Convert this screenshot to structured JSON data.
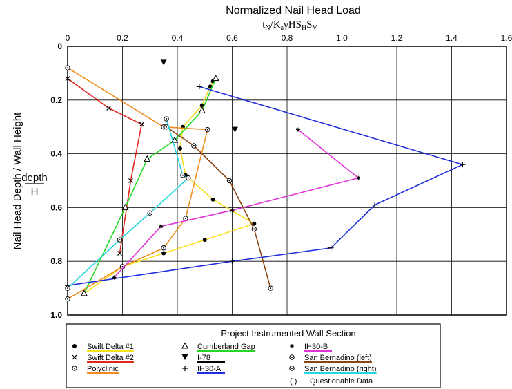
{
  "chart_data": {
    "type": "line",
    "title": "Normalized Nail Head Load",
    "formula_parts": {
      "t": "t",
      "t_sub": "N",
      "slash": "/",
      "K": "K",
      "K_sub": "a",
      "gamma": "γHS",
      "SH_sub": "H",
      "S": "S",
      "SV_sub": "V"
    },
    "ylabel": "Nail Head Depth / Wall Height",
    "y_fraction_num": "depth",
    "y_fraction_den": "H",
    "xlim": [
      0,
      1.6
    ],
    "ylim": [
      1.0,
      0
    ],
    "x_ticks": [
      "0",
      "0.2",
      "0.4",
      "0.6",
      "0.8",
      "1.0",
      "1.2",
      "1.4",
      "1.6"
    ],
    "y_ticks": [
      "0",
      "0.2",
      "0.4",
      "0.6",
      "0.8",
      "1.0"
    ],
    "grid": true,
    "legend_title": "Project Instrumented Wall Section",
    "series": [
      {
        "name": "Swift Delta #1",
        "color": "#f5e11c",
        "marker": "dot",
        "points": [
          [
            0.53,
            0.13
          ],
          [
            0.52,
            0.15
          ],
          [
            0.49,
            0.22
          ],
          [
            0.42,
            0.3
          ],
          [
            0.41,
            0.38
          ],
          [
            0.43,
            0.48
          ],
          [
            0.53,
            0.57
          ],
          [
            0.68,
            0.66
          ],
          [
            0.5,
            0.72
          ],
          [
            0.35,
            0.77
          ],
          [
            0.2,
            0.82
          ],
          [
            0.06,
            0.92
          ]
        ]
      },
      {
        "name": "Swift Delta #2",
        "color": "#e0251b",
        "marker": "x",
        "points": [
          [
            0.0,
            0.12
          ],
          [
            0.15,
            0.23
          ],
          [
            0.27,
            0.29
          ],
          [
            0.23,
            0.5
          ],
          [
            0.19,
            0.77
          ]
        ]
      },
      {
        "name": "Polyclinic",
        "color": "#f08c1e",
        "marker": "ring",
        "points": [
          [
            0.0,
            0.08
          ],
          [
            0.35,
            0.3
          ],
          [
            0.51,
            0.31
          ],
          [
            0.43,
            0.64
          ],
          [
            0.35,
            0.75
          ],
          [
            0.2,
            0.82
          ],
          [
            0.0,
            0.94
          ]
        ]
      },
      {
        "name": "Cumberland Gap",
        "color": "#22d822",
        "marker": "triangle",
        "points": [
          [
            0.54,
            0.12
          ],
          [
            0.49,
            0.24
          ],
          [
            0.39,
            0.35
          ],
          [
            0.29,
            0.42
          ],
          [
            0.21,
            0.6
          ],
          [
            0.06,
            0.92
          ]
        ]
      },
      {
        "name": "I-78",
        "color": "#000000",
        "marker": "triangle-down",
        "points": [
          [
            0.35,
            0.06
          ],
          [
            0.61,
            0.31
          ]
        ]
      },
      {
        "name": "IH30-A",
        "color": "#1e2ed8",
        "marker": "plus",
        "points": [
          [
            0.48,
            0.15
          ],
          [
            1.44,
            0.44
          ],
          [
            1.12,
            0.59
          ],
          [
            0.96,
            0.75
          ],
          [
            0.6,
            0.8
          ],
          [
            0.0,
            0.89
          ]
        ]
      },
      {
        "name": "IH30-B",
        "color": "#e032d8",
        "marker": "star",
        "points": [
          [
            0.84,
            0.31
          ],
          [
            1.06,
            0.49
          ],
          [
            0.6,
            0.61
          ],
          [
            0.34,
            0.67
          ],
          [
            0.17,
            0.86
          ]
        ]
      },
      {
        "name": "San Bernadino (left)",
        "color": "#8b4513",
        "marker": "ring",
        "points": [
          [
            0.36,
            0.3
          ],
          [
            0.46,
            0.37
          ],
          [
            0.59,
            0.5
          ],
          [
            0.68,
            0.68
          ],
          [
            0.74,
            0.9
          ]
        ]
      },
      {
        "name": "San Bernadino (right)",
        "color": "#22d8e0",
        "marker": "ring",
        "points": [
          [
            0.36,
            0.27
          ],
          [
            0.42,
            0.48
          ],
          [
            0.44,
            0.49
          ],
          [
            0.3,
            0.62
          ],
          [
            0.19,
            0.72
          ],
          [
            0.0,
            0.9
          ]
        ]
      }
    ],
    "legend": {
      "questionable": "Questionable Data",
      "questionable_symbol": "(    )"
    }
  }
}
